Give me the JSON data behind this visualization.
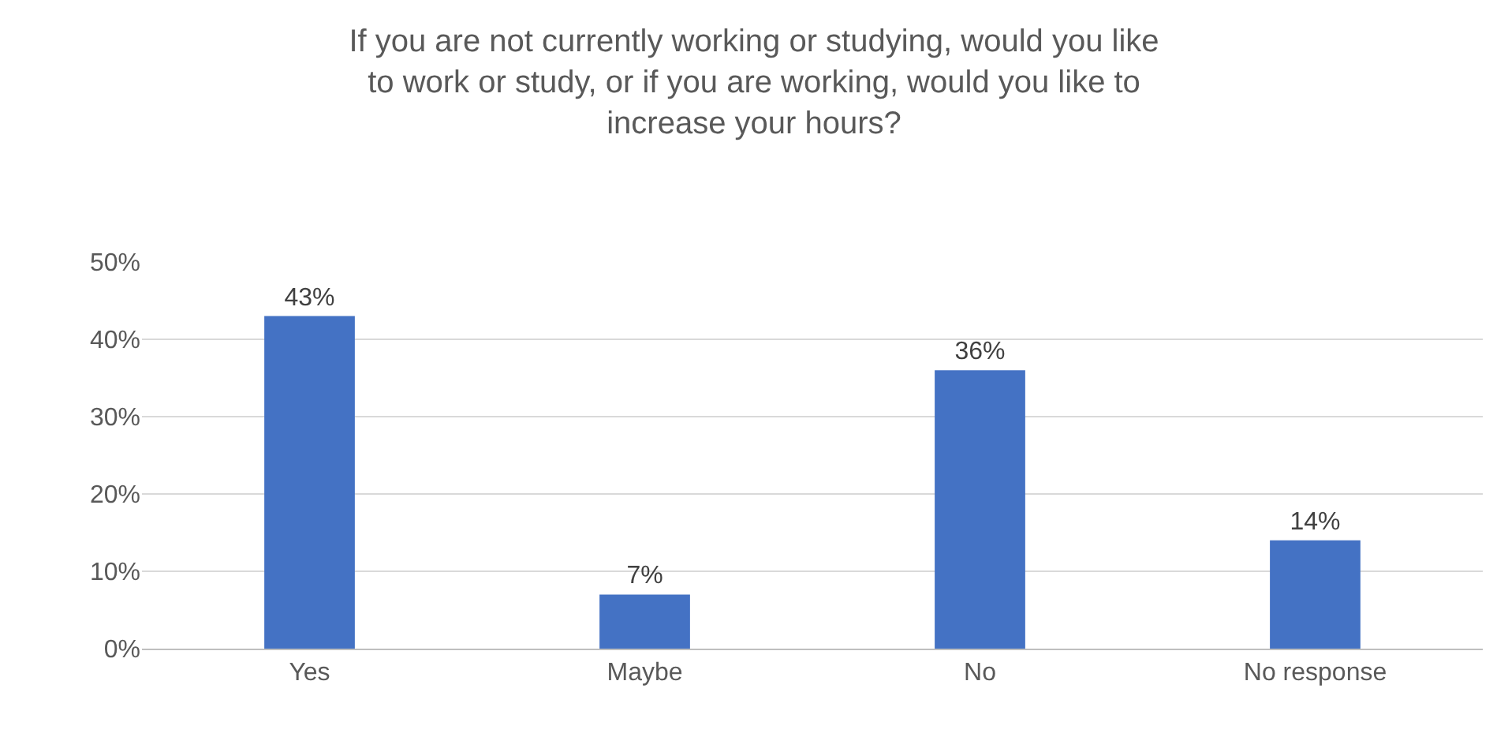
{
  "chart_data": {
    "type": "bar",
    "title": "If you are not currently working or studying, would you like to work or study, or if you are working, would you like to increase your hours?",
    "categories": [
      "Yes",
      "Maybe",
      "No",
      "No response"
    ],
    "values": [
      43,
      7,
      36,
      14
    ],
    "value_labels": [
      "43%",
      "7%",
      "36%",
      "14%"
    ],
    "color": "#4472c4",
    "ylim": [
      0,
      50
    ],
    "yticks": [
      {
        "value": 0,
        "label": "0%"
      },
      {
        "value": 10,
        "label": "10%"
      },
      {
        "value": 20,
        "label": "20%"
      },
      {
        "value": 30,
        "label": "30%"
      },
      {
        "value": 40,
        "label": "40%"
      },
      {
        "value": 50,
        "label": "50%"
      }
    ],
    "grid": "y"
  }
}
